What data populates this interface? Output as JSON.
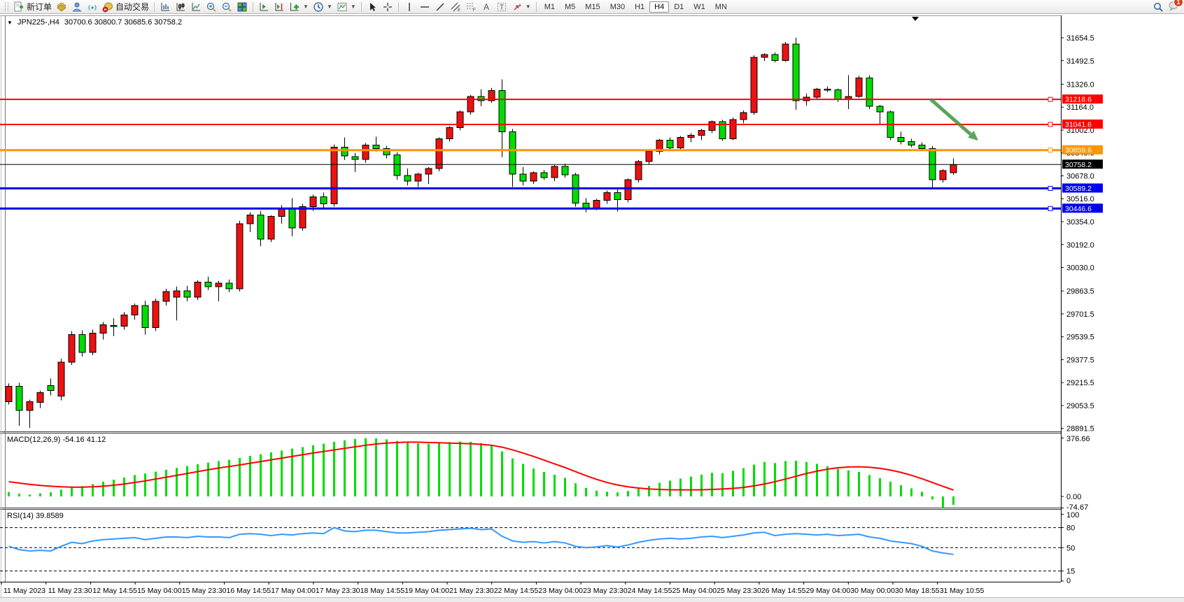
{
  "toolbar": {
    "new_order_label": "新订单",
    "autotrade_label": "自动交易",
    "timeframes": [
      "M1",
      "M5",
      "M15",
      "M30",
      "H1",
      "H4",
      "D1",
      "W1",
      "MN"
    ],
    "active_timeframe": "H4",
    "notification_count": "1",
    "icons": [
      "new-order",
      "market-depth",
      "community",
      "signals",
      "autotrade",
      "bar-chart",
      "candlestick-chart",
      "line-chart",
      "zoom-in",
      "zoom-out",
      "tile-windows",
      "auto-scroll",
      "chart-shift",
      "indicators",
      "periods",
      "templates",
      "cursor",
      "crosshair",
      "vertical-line",
      "horizontal-line",
      "trendline",
      "equidistant-channel",
      "fibonacci",
      "text",
      "text-label",
      "arrows",
      "search",
      "notifications"
    ]
  },
  "chart": {
    "expander_glyph": "▼",
    "title": "JPN225-,H4",
    "ohlc_display": "30700.6 30800.7 30685.6 30758.2"
  },
  "chart_data": {
    "type": "candlestick",
    "symbol": "JPN225-",
    "timeframe": "H4",
    "current_bar": {
      "open": 30700.6,
      "high": 30800.7,
      "low": 30685.6,
      "close": 30758.2
    },
    "bull_color": "#EE1111",
    "bear_color": "#00DD00",
    "x_labels": [
      "11 May 2023",
      "11 May 23:30",
      "12 May 14:55",
      "15 May 04:00",
      "15 May 23:30",
      "16 May 14:55",
      "17 May 04:00",
      "17 May 23:30",
      "18 May 14:55",
      "19 May 04:00",
      "21 May 23:30",
      "22 May 14:55",
      "23 May 04:00",
      "23 May 23:30",
      "24 May 14:55",
      "25 May 04:00",
      "25 May 23:30",
      "26 May 14:55",
      "29 May 04:00",
      "30 May 00:00",
      "30 May 18:55",
      "31 May 10:55"
    ],
    "price_axis_ticks": [
      31654.5,
      31492.5,
      31326.0,
      31164.0,
      31002.0,
      30840.0,
      30678.0,
      30516.0,
      30354.0,
      30192.0,
      30030.0,
      29863.5,
      29701.5,
      29539.5,
      29377.5,
      29215.5,
      29053.5,
      28891.5
    ],
    "hlines": [
      {
        "value": 31218.6,
        "color": "#FF0000",
        "width": 2
      },
      {
        "value": 31041.6,
        "color": "#FF0000",
        "width": 2
      },
      {
        "value": 30859.6,
        "color": "#FF9500",
        "width": 3
      },
      {
        "value": 30758.2,
        "color": "#000000",
        "width": 1,
        "role": "current-price"
      },
      {
        "value": 30589.2,
        "color": "#0000EE",
        "width": 3
      },
      {
        "value": 30446.6,
        "color": "#0000EE",
        "width": 3
      }
    ],
    "annotations": [
      {
        "type": "arrow",
        "direction": "down-right",
        "color": "#3F9440",
        "from_price": 31220,
        "to_price": 30950
      }
    ],
    "candles": [
      [
        29080,
        29210,
        29060,
        29190
      ],
      [
        29190,
        29215,
        28910,
        29020
      ],
      [
        29020,
        29095,
        28895,
        29080
      ],
      [
        29075,
        29160,
        29035,
        29145
      ],
      [
        29195,
        29245,
        29125,
        29160
      ],
      [
        29120,
        29385,
        29090,
        29360
      ],
      [
        29360,
        29580,
        29340,
        29555
      ],
      [
        29555,
        29585,
        29400,
        29430
      ],
      [
        29430,
        29590,
        29410,
        29565
      ],
      [
        29565,
        29645,
        29520,
        29625
      ],
      [
        29620,
        29670,
        29545,
        29615
      ],
      [
        29615,
        29715,
        29590,
        29695
      ],
      [
        29695,
        29775,
        29660,
        29760
      ],
      [
        29760,
        29795,
        29555,
        29605
      ],
      [
        29605,
        29810,
        29580,
        29790
      ],
      [
        29790,
        29880,
        29760,
        29860
      ],
      [
        29820,
        29895,
        29655,
        29865
      ],
      [
        29865,
        29900,
        29790,
        29820
      ],
      [
        29820,
        29940,
        29800,
        29925
      ],
      [
        29925,
        29965,
        29870,
        29895
      ],
      [
        29895,
        29935,
        29790,
        29920
      ],
      [
        29920,
        29945,
        29855,
        29880
      ],
      [
        29880,
        30360,
        29860,
        30340
      ],
      [
        30340,
        30420,
        30280,
        30400
      ],
      [
        30400,
        30430,
        30180,
        30230
      ],
      [
        30230,
        30400,
        30210,
        30390
      ],
      [
        30390,
        30470,
        30340,
        30450
      ],
      [
        30450,
        30520,
        30250,
        30310
      ],
      [
        30310,
        30480,
        30290,
        30460
      ],
      [
        30460,
        30545,
        30430,
        30530
      ],
      [
        30530,
        30560,
        30440,
        30480
      ],
      [
        30480,
        30900,
        30460,
        30880
      ],
      [
        30880,
        30950,
        30790,
        30820
      ],
      [
        30815,
        30840,
        30705,
        30795
      ],
      [
        30795,
        30910,
        30770,
        30895
      ],
      [
        30895,
        30955,
        30850,
        30870
      ],
      [
        30870,
        30890,
        30800,
        30825
      ],
      [
        30825,
        30845,
        30650,
        30680
      ],
      [
        30680,
        30730,
        30610,
        30640
      ],
      [
        30640,
        30700,
        30600,
        30690
      ],
      [
        30690,
        30740,
        30620,
        30730
      ],
      [
        30730,
        30950,
        30710,
        30940
      ],
      [
        30940,
        31030,
        30920,
        31020
      ],
      [
        31020,
        31140,
        31000,
        31130
      ],
      [
        31130,
        31250,
        31110,
        31240
      ],
      [
        31240,
        31290,
        31170,
        31210
      ],
      [
        31210,
        31300,
        31195,
        31280
      ],
      [
        31280,
        31360,
        30810,
        30990
      ],
      [
        30990,
        31010,
        30600,
        30690
      ],
      [
        30690,
        30740,
        30610,
        30640
      ],
      [
        30640,
        30710,
        30620,
        30700
      ],
      [
        30700,
        30720,
        30650,
        30665
      ],
      [
        30665,
        30755,
        30640,
        30745
      ],
      [
        30745,
        30765,
        30665,
        30685
      ],
      [
        30685,
        30700,
        30460,
        30485
      ],
      [
        30485,
        30520,
        30420,
        30450
      ],
      [
        30450,
        30515,
        30435,
        30505
      ],
      [
        30505,
        30575,
        30480,
        30560
      ],
      [
        30560,
        30585,
        30425,
        30510
      ],
      [
        30510,
        30660,
        30490,
        30650
      ],
      [
        30650,
        30790,
        30630,
        30780
      ],
      [
        30780,
        30865,
        30760,
        30850
      ],
      [
        30850,
        30940,
        30830,
        30930
      ],
      [
        30930,
        30950,
        30855,
        30875
      ],
      [
        30875,
        30960,
        30855,
        30950
      ],
      [
        30950,
        30980,
        30915,
        30965
      ],
      [
        30965,
        31010,
        30930,
        31000
      ],
      [
        31000,
        31070,
        30980,
        31060
      ],
      [
        31060,
        31075,
        30925,
        30940
      ],
      [
        30940,
        31090,
        30930,
        31075
      ],
      [
        31075,
        31140,
        31050,
        31125
      ],
      [
        31125,
        31530,
        31110,
        31515
      ],
      [
        31515,
        31545,
        31490,
        31535
      ],
      [
        31535,
        31550,
        31480,
        31495
      ],
      [
        31495,
        31625,
        31485,
        31610
      ],
      [
        31610,
        31655,
        31145,
        31210
      ],
      [
        31210,
        31260,
        31175,
        31235
      ],
      [
        31235,
        31300,
        31220,
        31290
      ],
      [
        31290,
        31310,
        31270,
        31285
      ],
      [
        31285,
        31295,
        31200,
        31220
      ],
      [
        31220,
        31390,
        31150,
        31240
      ],
      [
        31240,
        31385,
        31230,
        31370
      ],
      [
        31370,
        31390,
        31150,
        31170
      ],
      [
        31170,
        31180,
        31040,
        31130
      ],
      [
        31130,
        31140,
        30930,
        30950
      ],
      [
        30950,
        30990,
        30900,
        30920
      ],
      [
        30920,
        30940,
        30880,
        30895
      ],
      [
        30895,
        30915,
        30855,
        30870
      ],
      [
        30870,
        30890,
        30590,
        30650
      ],
      [
        30650,
        30725,
        30630,
        30715
      ],
      [
        30700.6,
        30800.7,
        30685.6,
        30758.2
      ]
    ],
    "indicators": [
      {
        "name": "MACD",
        "label": "MACD(12,26,9) -54.16 41.12",
        "axis_ticks": [
          376.66,
          0.0,
          -74.67
        ],
        "histogram_color": "#00DD00",
        "signal_color": "#FF0000",
        "histogram": [
          28,
          18,
          12,
          20,
          26,
          44,
          58,
          66,
          80,
          95,
          108,
          122,
          138,
          148,
          160,
          172,
          184,
          196,
          208,
          218,
          228,
          236,
          248,
          262,
          272,
          284,
          296,
          308,
          318,
          330,
          340,
          352,
          362,
          370,
          376,
          374,
          368,
          358,
          348,
          342,
          340,
          344,
          350,
          354,
          352,
          344,
          330,
          290,
          245,
          210,
          180,
          158,
          140,
          120,
          85,
          55,
          38,
          30,
          26,
          35,
          50,
          68,
          88,
          102,
          115,
          128,
          140,
          152,
          150,
          165,
          182,
          205,
          222,
          215,
          228,
          230,
          222,
          210,
          195,
          178,
          168,
          158,
          138,
          118,
          95,
          72,
          52,
          30,
          -20,
          -74.67,
          -54.16
        ],
        "signal": [
          95,
          86,
          78,
          71,
          66,
          62,
          60,
          60,
          62,
          66,
          72,
          80,
          90,
          100,
          112,
          124,
          136,
          148,
          160,
          172,
          183,
          193,
          203,
          214,
          225,
          236,
          247,
          258,
          269,
          280,
          290,
          300,
          310,
          320,
          330,
          338,
          344,
          348,
          350,
          350,
          348,
          346,
          344,
          342,
          340,
          336,
          330,
          318,
          300,
          280,
          258,
          234,
          210,
          186,
          160,
          134,
          110,
          90,
          74,
          62,
          54,
          48,
          45,
          43,
          42,
          42,
          43,
          45,
          48,
          52,
          58,
          68,
          80,
          95,
          112,
          130,
          148,
          163,
          176,
          185,
          190,
          191,
          188,
          181,
          170,
          155,
          136,
          114,
          90,
          65,
          41.12
        ]
      },
      {
        "name": "RSI",
        "label": "RSI(14) 39.8589",
        "axis_ticks": [
          100,
          80,
          50,
          15,
          0
        ],
        "levels": [
          80,
          50,
          15
        ],
        "line_color": "#3399FF",
        "values": [
          52,
          47,
          45,
          46,
          45,
          52,
          58,
          56,
          60,
          62,
          63,
          64,
          65,
          62,
          64,
          66,
          66,
          65,
          67,
          66,
          66,
          65,
          70,
          71,
          70,
          68,
          70,
          69,
          71,
          72,
          71,
          80,
          75,
          74,
          76,
          76,
          74,
          72,
          72,
          73,
          74,
          76,
          77,
          78,
          79,
          77,
          78,
          67,
          60,
          58,
          59,
          57,
          59,
          57,
          52,
          50,
          51,
          53,
          51,
          54,
          58,
          61,
          63,
          64,
          63,
          64,
          66,
          67,
          65,
          67,
          69,
          72,
          73,
          68,
          70,
          71,
          70,
          69,
          70,
          68,
          69,
          70,
          66,
          64,
          60,
          58,
          56,
          52,
          45,
          42,
          39.86
        ]
      }
    ]
  }
}
